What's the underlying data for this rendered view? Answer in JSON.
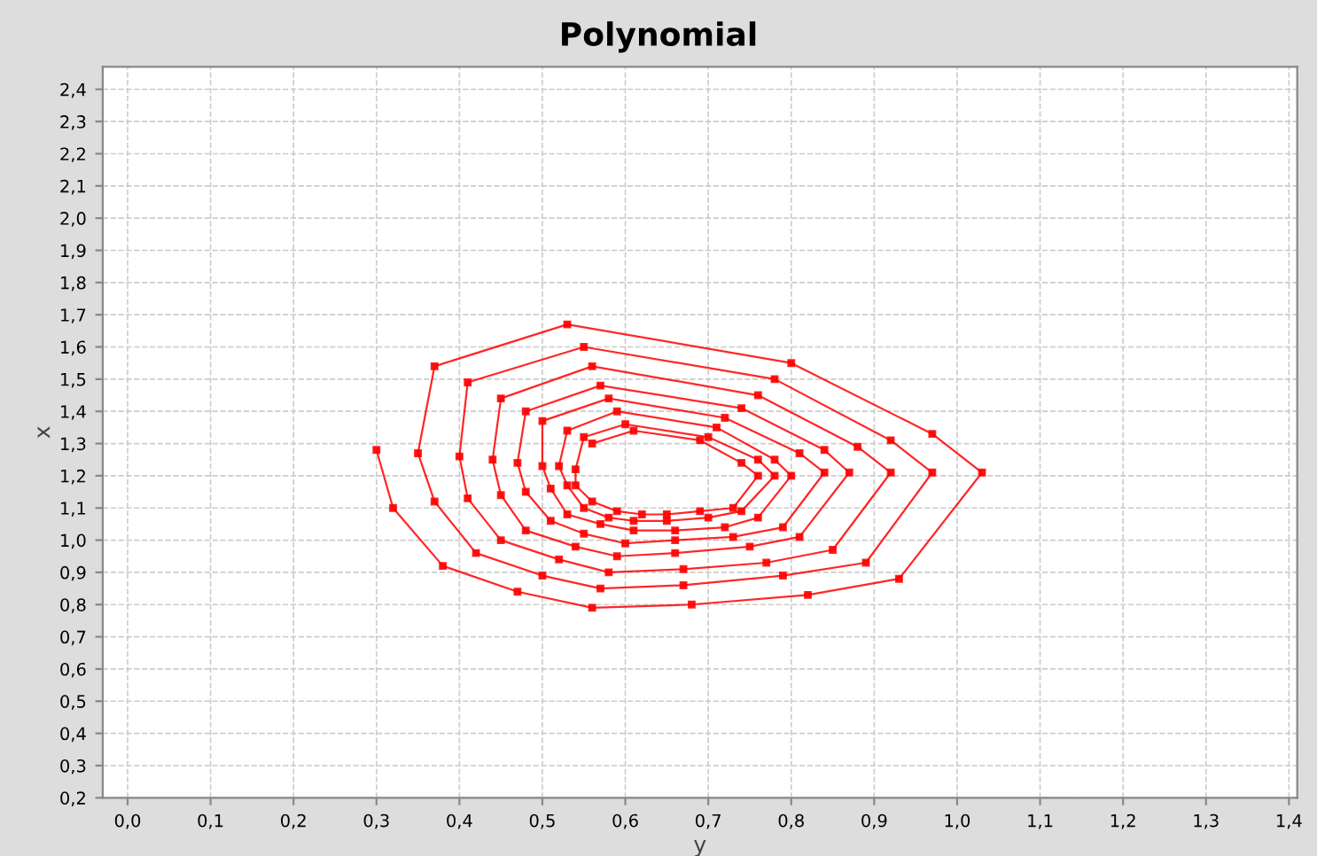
{
  "chart_data": {
    "type": "line",
    "title": "Polynomial",
    "xlabel": "y",
    "ylabel": "x",
    "xlim": [
      -0.03,
      1.41
    ],
    "ylim": [
      0.2,
      2.47
    ],
    "xticks": [
      {
        "value": 0,
        "label": "0,0"
      },
      {
        "value": 0.1,
        "label": "0,1"
      },
      {
        "value": 0.2,
        "label": "0,2"
      },
      {
        "value": 0.3,
        "label": "0,3"
      },
      {
        "value": 0.4,
        "label": "0,4"
      },
      {
        "value": 0.5,
        "label": "0,5"
      },
      {
        "value": 0.6,
        "label": "0,6"
      },
      {
        "value": 0.7,
        "label": "0,7"
      },
      {
        "value": 0.8,
        "label": "0,8"
      },
      {
        "value": 0.9,
        "label": "0,9"
      },
      {
        "value": 1.0,
        "label": "1,0"
      },
      {
        "value": 1.1,
        "label": "1,1"
      },
      {
        "value": 1.2,
        "label": "1,2"
      },
      {
        "value": 1.3,
        "label": "1,3"
      },
      {
        "value": 1.4,
        "label": "1,4"
      }
    ],
    "yticks": [
      {
        "value": 0.2,
        "label": "0,2"
      },
      {
        "value": 0.3,
        "label": "0,3"
      },
      {
        "value": 0.4,
        "label": "0,4"
      },
      {
        "value": 0.5,
        "label": "0,5"
      },
      {
        "value": 0.6,
        "label": "0,6"
      },
      {
        "value": 0.7,
        "label": "0,7"
      },
      {
        "value": 0.8,
        "label": "0,8"
      },
      {
        "value": 0.9,
        "label": "0,9"
      },
      {
        "value": 1.0,
        "label": "1,0"
      },
      {
        "value": 1.1,
        "label": "1,1"
      },
      {
        "value": 1.2,
        "label": "1,2"
      },
      {
        "value": 1.3,
        "label": "1,3"
      },
      {
        "value": 1.4,
        "label": "1,4"
      },
      {
        "value": 1.5,
        "label": "1,5"
      },
      {
        "value": 1.6,
        "label": "1,6"
      },
      {
        "value": 1.7,
        "label": "1,7"
      },
      {
        "value": 1.8,
        "label": "1,8"
      },
      {
        "value": 1.9,
        "label": "1,9"
      },
      {
        "value": 2.0,
        "label": "2,0"
      },
      {
        "value": 2.1,
        "label": "2,1"
      },
      {
        "value": 2.2,
        "label": "2,2"
      },
      {
        "value": 2.3,
        "label": "2,3"
      },
      {
        "value": 2.4,
        "label": "2,4"
      }
    ],
    "grid": true,
    "legend": false,
    "marker": "square",
    "line_style": "solid",
    "series": [
      {
        "color": "#ff0000",
        "x": [
          0.3,
          0.32,
          0.38,
          0.47,
          0.56,
          0.68,
          0.82,
          0.93,
          1.03,
          0.97,
          0.8,
          0.53,
          0.37,
          0.35,
          0.37,
          0.42,
          0.5,
          0.57,
          0.67,
          0.79,
          0.89,
          0.97,
          0.92,
          0.78,
          0.55,
          0.41,
          0.4,
          0.41,
          0.45,
          0.52,
          0.58,
          0.67,
          0.77,
          0.85,
          0.92,
          0.88,
          0.76,
          0.56,
          0.45,
          0.44,
          0.45,
          0.48,
          0.54,
          0.59,
          0.66,
          0.75,
          0.81,
          0.87,
          0.84,
          0.74,
          0.57,
          0.48,
          0.47,
          0.48,
          0.51,
          0.55,
          0.6,
          0.66,
          0.73,
          0.79,
          0.84,
          0.81,
          0.72,
          0.58,
          0.5,
          0.5,
          0.51,
          0.53,
          0.57,
          0.61,
          0.66,
          0.72,
          0.76,
          0.8,
          0.78,
          0.71,
          0.59,
          0.53,
          0.52,
          0.53,
          0.55,
          0.58,
          0.61,
          0.65,
          0.7,
          0.74,
          0.78,
          0.76,
          0.7,
          0.6,
          0.55,
          0.54,
          0.54,
          0.56,
          0.59,
          0.62,
          0.65,
          0.69,
          0.73,
          0.76,
          0.74,
          0.69,
          0.61,
          0.56
        ],
        "values": [
          1.28,
          1.1,
          0.92,
          0.84,
          0.79,
          0.8,
          0.83,
          0.88,
          1.21,
          1.33,
          1.55,
          1.67,
          1.54,
          1.27,
          1.12,
          0.96,
          0.89,
          0.85,
          0.86,
          0.89,
          0.93,
          1.21,
          1.31,
          1.5,
          1.6,
          1.49,
          1.26,
          1.13,
          1.0,
          0.94,
          0.9,
          0.91,
          0.93,
          0.97,
          1.21,
          1.29,
          1.45,
          1.54,
          1.44,
          1.25,
          1.14,
          1.03,
          0.98,
          0.95,
          0.96,
          0.98,
          1.01,
          1.21,
          1.28,
          1.41,
          1.48,
          1.4,
          1.24,
          1.15,
          1.06,
          1.02,
          0.99,
          1.0,
          1.01,
          1.04,
          1.21,
          1.27,
          1.38,
          1.44,
          1.37,
          1.23,
          1.16,
          1.08,
          1.05,
          1.03,
          1.03,
          1.04,
          1.07,
          1.2,
          1.25,
          1.35,
          1.4,
          1.34,
          1.23,
          1.17,
          1.1,
          1.07,
          1.06,
          1.06,
          1.07,
          1.09,
          1.2,
          1.25,
          1.32,
          1.36,
          1.32,
          1.22,
          1.17,
          1.12,
          1.09,
          1.08,
          1.08,
          1.09,
          1.1,
          1.2,
          1.24,
          1.31,
          1.34,
          1.3
        ]
      }
    ]
  }
}
